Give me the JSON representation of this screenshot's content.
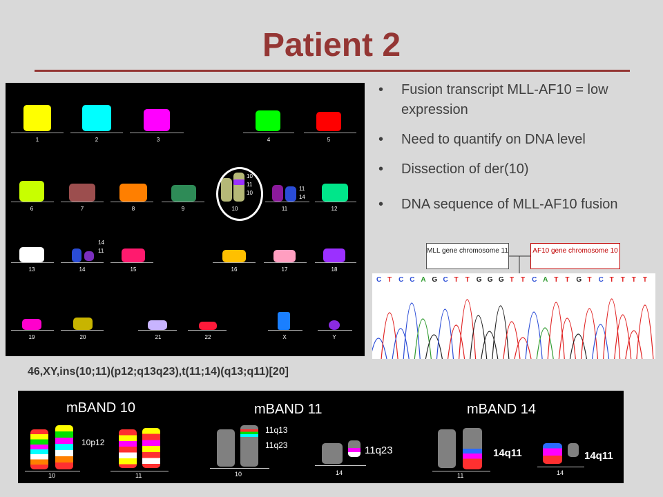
{
  "slide": {
    "title": "Patient 2"
  },
  "karyogram": {
    "chromosome_labels": [
      "1",
      "2",
      "3",
      "4",
      "5",
      "6",
      "7",
      "8",
      "9",
      "10",
      "11",
      "12",
      "13",
      "14",
      "15",
      "16",
      "17",
      "18",
      "19",
      "20",
      "21",
      "22",
      "X",
      "Y"
    ],
    "der10_bands": [
      "10",
      "11",
      "10"
    ],
    "chr11_bands": [
      "11",
      "14"
    ],
    "chr14_bands": [
      "14",
      "11"
    ]
  },
  "karyotype": "46,XY,ins(10;11)(p12;q13q23),t(11;14)(q13;q11)[20]",
  "bullets": [
    "Fusion transcript MLL-AF10 = low expression",
    "Need to quantify on DNA level",
    "Dissection of der(10)",
    "DNA sequence of MLL-AF10 fusion"
  ],
  "sequence": {
    "mll_label": "MLL gene chromosome 11",
    "af10_label": "AF10 gene chromosome 10",
    "bases": [
      "C",
      "T",
      "C",
      "C",
      "A",
      "G",
      "C",
      "T",
      "T",
      "G",
      "G",
      "G",
      "T",
      "T",
      "C",
      "A",
      "T",
      "T",
      "G",
      "T",
      "C",
      "T",
      "T",
      "T",
      "T"
    ]
  },
  "mband": {
    "panel10": {
      "title": "mBAND 10",
      "band": "10p12",
      "labels": [
        "10",
        "11"
      ]
    },
    "panel11": {
      "title": "mBAND 11",
      "bands": [
        "11q13",
        "11q23"
      ],
      "right_band": "11q23",
      "labels": [
        "10",
        "14"
      ]
    },
    "panel14": {
      "title": "mBAND 14",
      "band1": "14q11",
      "band2": "14q11",
      "labels": [
        "11",
        "14"
      ]
    }
  },
  "colors": {
    "title": "#943634",
    "slide_bg": "#d9d9d9",
    "af10": "#c00000"
  }
}
